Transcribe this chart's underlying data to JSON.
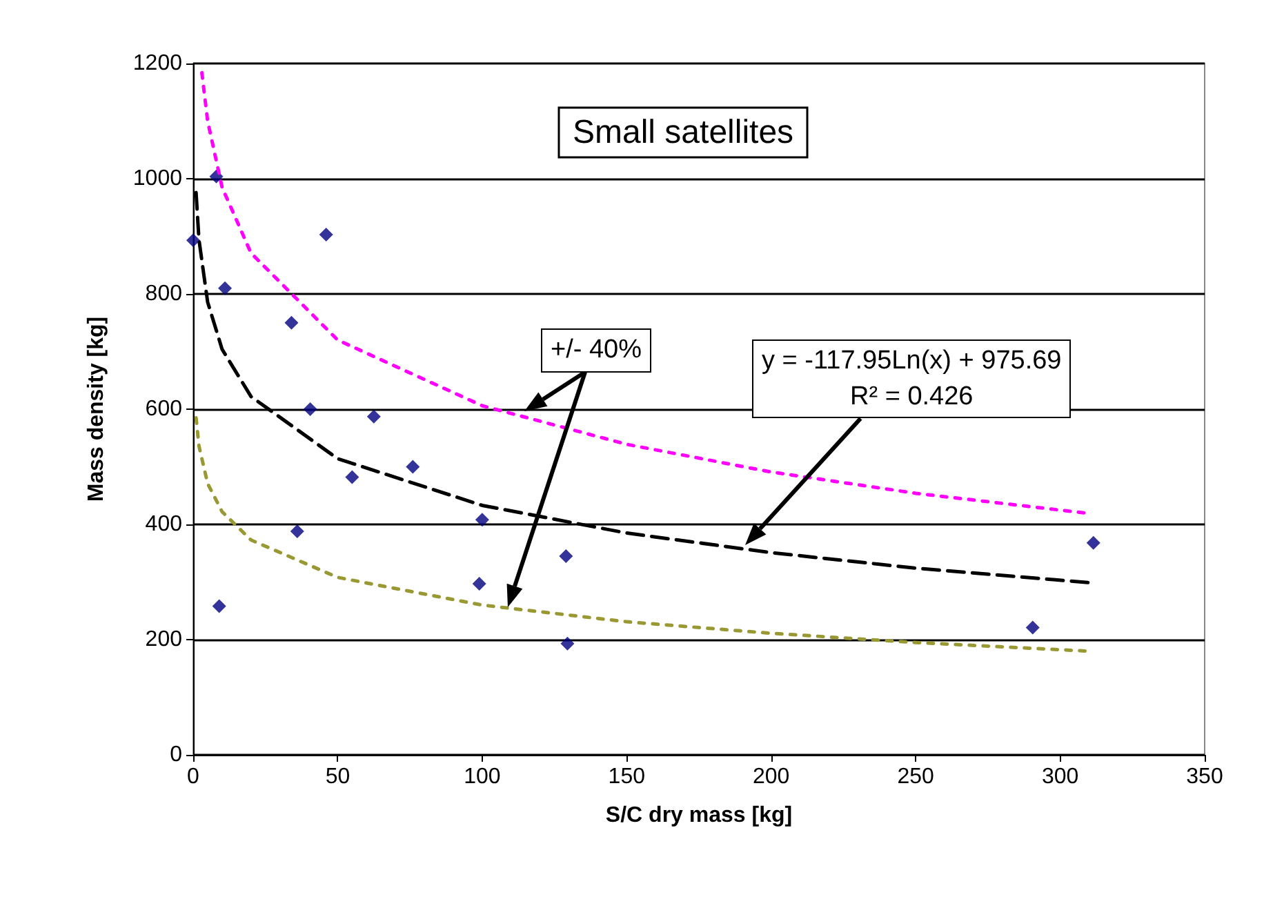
{
  "chart_data": {
    "type": "scatter",
    "title": "Small satellites",
    "xlabel": "S/C dry mass [kg]",
    "ylabel": "Mass density [kg]",
    "xlim": [
      0,
      350
    ],
    "xticks": [
      0,
      50,
      100,
      150,
      200,
      250,
      300,
      350
    ],
    "ylim": [
      0,
      1200
    ],
    "yticks": [
      0,
      200,
      400,
      600,
      800,
      1000,
      1200
    ],
    "grid": "y",
    "series": [
      {
        "marker": "diamond",
        "color": "#000080",
        "x": [
          0,
          8,
          11,
          9,
          34,
          46,
          40.5,
          36,
          62.5,
          55,
          76,
          100,
          99,
          129,
          129.5,
          290.5,
          311.5
        ],
        "values": [
          893,
          1004,
          810,
          258,
          750,
          903,
          600,
          388,
          587,
          482,
          500,
          408,
          297,
          345,
          193,
          221,
          368
        ]
      },
      {
        "type": "line",
        "marker": "none",
        "line_style": "dashed",
        "color": "#000000",
        "x": [
          1,
          2,
          5,
          10,
          20,
          50,
          100,
          150,
          200,
          250,
          310
        ],
        "values": [
          976,
          894,
          786,
          704,
          622,
          514,
          433,
          385,
          351,
          324,
          299
        ]
      },
      {
        "type": "line",
        "marker": "none",
        "line_style": "dotted",
        "color": "#ff00ff",
        "x": [
          3,
          5,
          10,
          20,
          50,
          100,
          150,
          200,
          250,
          310
        ],
        "values": [
          1184,
          1100,
          985,
          871,
          720,
          606,
          539,
          491,
          454,
          419
        ]
      },
      {
        "type": "line",
        "marker": "none",
        "line_style": "dotted",
        "color": "#999933",
        "x": [
          1,
          2,
          5,
          10,
          20,
          50,
          100,
          150,
          200,
          250,
          310
        ],
        "values": [
          585,
          536,
          471,
          422,
          373,
          308,
          260,
          231,
          211,
          195,
          180
        ]
      }
    ],
    "annotations": [
      "+/- 40%",
      "y = -117.95Ln(x) + 975.69\nR² = 0.426"
    ]
  }
}
